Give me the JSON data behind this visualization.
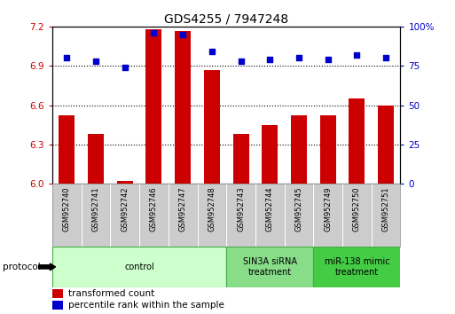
{
  "title": "GDS4255 / 7947248",
  "samples": [
    "GSM952740",
    "GSM952741",
    "GSM952742",
    "GSM952746",
    "GSM952747",
    "GSM952748",
    "GSM952743",
    "GSM952744",
    "GSM952745",
    "GSM952749",
    "GSM952750",
    "GSM952751"
  ],
  "transformed_counts": [
    6.52,
    6.38,
    6.02,
    7.18,
    7.17,
    6.87,
    6.38,
    6.45,
    6.52,
    6.52,
    6.65,
    6.6
  ],
  "percentile_ranks": [
    80,
    78,
    74,
    96,
    95,
    84,
    78,
    79,
    80,
    79,
    82,
    80
  ],
  "ylim_left": [
    6.0,
    7.2
  ],
  "ylim_right": [
    0,
    100
  ],
  "yticks_left": [
    6.0,
    6.3,
    6.6,
    6.9,
    7.2
  ],
  "yticks_right": [
    0,
    25,
    50,
    75,
    100
  ],
  "grid_lines": [
    6.3,
    6.6,
    6.9
  ],
  "bar_color": "#cc0000",
  "dot_color": "#0000cc",
  "bar_base": 6.0,
  "groups": [
    {
      "label": "control",
      "start": 0,
      "end": 6,
      "color": "#ccffcc",
      "edge_color": "#44aa44"
    },
    {
      "label": "SIN3A siRNA\ntreatment",
      "start": 6,
      "end": 9,
      "color": "#88dd88",
      "edge_color": "#44aa44"
    },
    {
      "label": "miR-138 mimic\ntreatment",
      "start": 9,
      "end": 12,
      "color": "#44cc44",
      "edge_color": "#44aa44"
    }
  ],
  "protocol_label": "protocol",
  "legend_bar_label": "transformed count",
  "legend_dot_label": "percentile rank within the sample",
  "background_color": "#ffffff",
  "plot_bg_color": "#ffffff",
  "tick_label_color_left": "#cc0000",
  "tick_label_color_right": "#0000cc",
  "sample_box_color": "#cccccc",
  "bar_width": 0.55
}
